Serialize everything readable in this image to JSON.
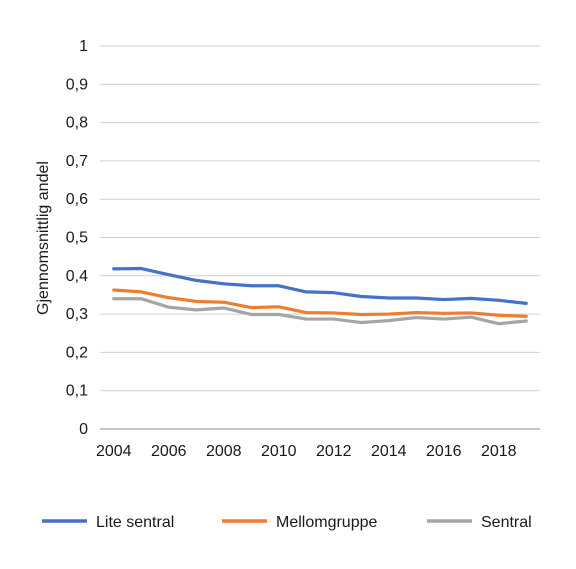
{
  "chart_data": {
    "type": "line",
    "title": "",
    "xlabel": "",
    "ylabel": "Gjennomsnittlig andel",
    "x": [
      2004,
      2005,
      2006,
      2007,
      2008,
      2009,
      2010,
      2011,
      2012,
      2013,
      2014,
      2015,
      2016,
      2017,
      2018,
      2019
    ],
    "x_ticks": [
      "2004",
      "2006",
      "2008",
      "2010",
      "2012",
      "2014",
      "2016",
      "2018"
    ],
    "x_tick_values": [
      2004,
      2006,
      2008,
      2010,
      2012,
      2014,
      2016,
      2018
    ],
    "xlim": [
      2003.5,
      2019.5
    ],
    "y_ticks": [
      "0",
      "0,1",
      "0,2",
      "0,3",
      "0,4",
      "0,5",
      "0,6",
      "0,7",
      "0,8",
      "0,9",
      "1"
    ],
    "y_tick_values": [
      0,
      0.1,
      0.2,
      0.3,
      0.4,
      0.5,
      0.6,
      0.7,
      0.8,
      0.9,
      1
    ],
    "ylim": [
      0,
      1
    ],
    "grid": "horizontal",
    "legend_position": "bottom",
    "series": [
      {
        "name": "Lite sentral",
        "color": "#4472C4",
        "values": [
          0.418,
          0.419,
          0.403,
          0.388,
          0.379,
          0.374,
          0.374,
          0.358,
          0.356,
          0.346,
          0.342,
          0.342,
          0.338,
          0.341,
          0.336,
          0.328
        ]
      },
      {
        "name": "Mellomgruppe",
        "color": "#ED7D31",
        "values": [
          0.363,
          0.358,
          0.343,
          0.333,
          0.331,
          0.317,
          0.319,
          0.304,
          0.303,
          0.299,
          0.3,
          0.304,
          0.302,
          0.303,
          0.297,
          0.294
        ]
      },
      {
        "name": "Sentral",
        "color": "#A5A5A5",
        "values": [
          0.34,
          0.34,
          0.318,
          0.311,
          0.316,
          0.299,
          0.299,
          0.287,
          0.287,
          0.278,
          0.283,
          0.291,
          0.287,
          0.292,
          0.275,
          0.282
        ]
      }
    ]
  }
}
